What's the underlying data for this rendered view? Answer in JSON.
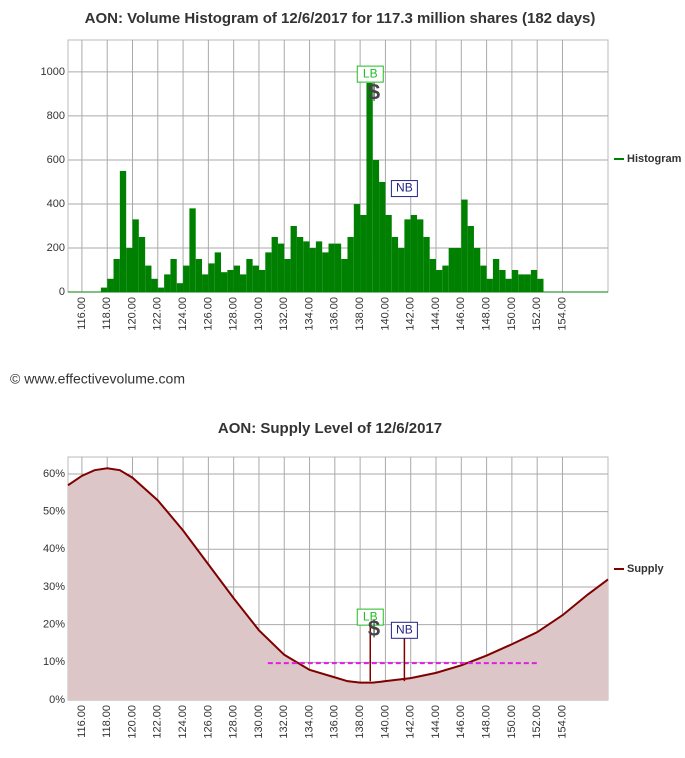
{
  "footer": "© www.effectivevolume.com",
  "chart_data": [
    {
      "type": "histogram",
      "title": "AON: Volume Histogram of 12/6/2017 for 117.3 million shares (182 days)",
      "legend": "Histogram",
      "color": "#008000",
      "grid": true,
      "bins": [
        117.5,
        118,
        118.5,
        119,
        119.5,
        120,
        120.5,
        121,
        121.5,
        122,
        122.5,
        123,
        123.5,
        124,
        124.5,
        125,
        125.5,
        126,
        126.5,
        127,
        127.5,
        128,
        128.5,
        129,
        129.5,
        130,
        130.5,
        131,
        131.5,
        132,
        132.5,
        133,
        133.5,
        134,
        134.5,
        135,
        135.5,
        136,
        136.5,
        137,
        137.5,
        138,
        138.5,
        139,
        139.5,
        140,
        140.5,
        141,
        141.5,
        142,
        142.5,
        143,
        143.5,
        144,
        144.5,
        145,
        145.5,
        146,
        146.5,
        147,
        147.5,
        148,
        148.5,
        149,
        149.5,
        150,
        150.5,
        151,
        151.5,
        152,
        152.5
      ],
      "values": [
        20,
        60,
        150,
        550,
        200,
        330,
        250,
        120,
        60,
        20,
        80,
        150,
        40,
        120,
        380,
        150,
        80,
        130,
        180,
        90,
        100,
        120,
        80,
        150,
        120,
        100,
        180,
        250,
        220,
        150,
        300,
        250,
        230,
        200,
        230,
        180,
        220,
        220,
        150,
        250,
        400,
        350,
        950,
        600,
        500,
        350,
        250,
        200,
        330,
        350,
        330,
        250,
        150,
        100,
        120,
        200,
        200,
        420,
        300,
        200,
        120,
        60,
        150,
        100,
        60,
        100,
        80,
        80,
        100,
        60
      ],
      "xlim": [
        114.9,
        157.6
      ],
      "ylim": [
        0,
        1145
      ],
      "xticks": [
        {
          "value": 116,
          "label": "116.00"
        },
        {
          "value": 118,
          "label": "118.00"
        },
        {
          "value": 120,
          "label": "120.00"
        },
        {
          "value": 122,
          "label": "122.00"
        },
        {
          "value": 124,
          "label": "124.00"
        },
        {
          "value": 126,
          "label": "126.00"
        },
        {
          "value": 128,
          "label": "128.00"
        },
        {
          "value": 130,
          "label": "130.00"
        },
        {
          "value": 132,
          "label": "132.00"
        },
        {
          "value": 134,
          "label": "134.00"
        },
        {
          "value": 136,
          "label": "136.00"
        },
        {
          "value": 138,
          "label": "138.00"
        },
        {
          "value": 140,
          "label": "140.00"
        },
        {
          "value": 142,
          "label": "142.00"
        },
        {
          "value": 144,
          "label": "144.00"
        },
        {
          "value": 146,
          "label": "146.00"
        },
        {
          "value": 148,
          "label": "148.00"
        },
        {
          "value": 150,
          "label": "150.00"
        },
        {
          "value": 152,
          "label": "152.00"
        },
        {
          "value": 154,
          "label": "154.00"
        }
      ],
      "yticks": [
        0,
        200,
        400,
        600,
        800,
        1000
      ],
      "annotations": [
        {
          "text": "LB",
          "x": 138.8,
          "y": 990,
          "style": "green"
        },
        {
          "text": "$",
          "x": 139.1,
          "y": 900,
          "style": "dollar"
        },
        {
          "text": "NB",
          "x": 141.5,
          "y": 470,
          "style": "blue"
        }
      ]
    },
    {
      "type": "area",
      "title": "AON: Supply Level of 12/6/2017",
      "grid": true,
      "x": [
        114.9,
        116,
        117,
        118,
        119,
        120,
        122,
        124,
        126,
        128,
        130,
        132,
        134,
        136,
        137,
        138,
        139,
        140,
        142,
        144,
        146,
        148,
        150,
        152,
        154,
        156,
        157.6
      ],
      "series": [
        {
          "name": "Supply",
          "color": "#800000",
          "values": [
            57,
            59.5,
            61,
            61.5,
            61,
            59,
            53,
            45,
            36,
            27,
            18.5,
            12,
            8,
            6,
            5,
            4.6,
            4.6,
            5,
            5.8,
            7.2,
            9.2,
            11.8,
            14.8,
            18,
            22.5,
            28,
            32
          ]
        }
      ],
      "xlim": [
        114.9,
        157.6
      ],
      "ylim": [
        0,
        64.5
      ],
      "xticks": [
        {
          "value": 116,
          "label": "116.00"
        },
        {
          "value": 118,
          "label": "118.00"
        },
        {
          "value": 120,
          "label": "120.00"
        },
        {
          "value": 122,
          "label": "122.00"
        },
        {
          "value": 124,
          "label": "124.00"
        },
        {
          "value": 126,
          "label": "126.00"
        },
        {
          "value": 128,
          "label": "128.00"
        },
        {
          "value": 130,
          "label": "130.00"
        },
        {
          "value": 132,
          "label": "132.00"
        },
        {
          "value": 134,
          "label": "134.00"
        },
        {
          "value": 136,
          "label": "136.00"
        },
        {
          "value": 138,
          "label": "138.00"
        },
        {
          "value": 140,
          "label": "140.00"
        },
        {
          "value": 142,
          "label": "142.00"
        },
        {
          "value": 144,
          "label": "144.00"
        },
        {
          "value": 146,
          "label": "146.00"
        },
        {
          "value": 148,
          "label": "148.00"
        },
        {
          "value": 150,
          "label": "150.00"
        },
        {
          "value": 152,
          "label": "152.00"
        },
        {
          "value": 154,
          "label": "154.00"
        }
      ],
      "yticks": [
        {
          "value": 0,
          "label": "0%"
        },
        {
          "value": 10,
          "label": "10%"
        },
        {
          "value": 20,
          "label": "20%"
        },
        {
          "value": 30,
          "label": "30%"
        },
        {
          "value": 40,
          "label": "40%"
        },
        {
          "value": 50,
          "label": "50%"
        },
        {
          "value": 60,
          "label": "60%"
        }
      ],
      "level": {
        "value": 9.8,
        "x": [
          130.7,
          152
        ]
      },
      "annotations": [
        {
          "text": "LB",
          "x": 138.8,
          "y": 22,
          "style": "green"
        },
        {
          "text": "$",
          "x": 139.1,
          "y": 18.5,
          "style": "dollar"
        },
        {
          "text": "NB",
          "x": 141.5,
          "y": 18.5,
          "style": "blue"
        }
      ]
    }
  ]
}
